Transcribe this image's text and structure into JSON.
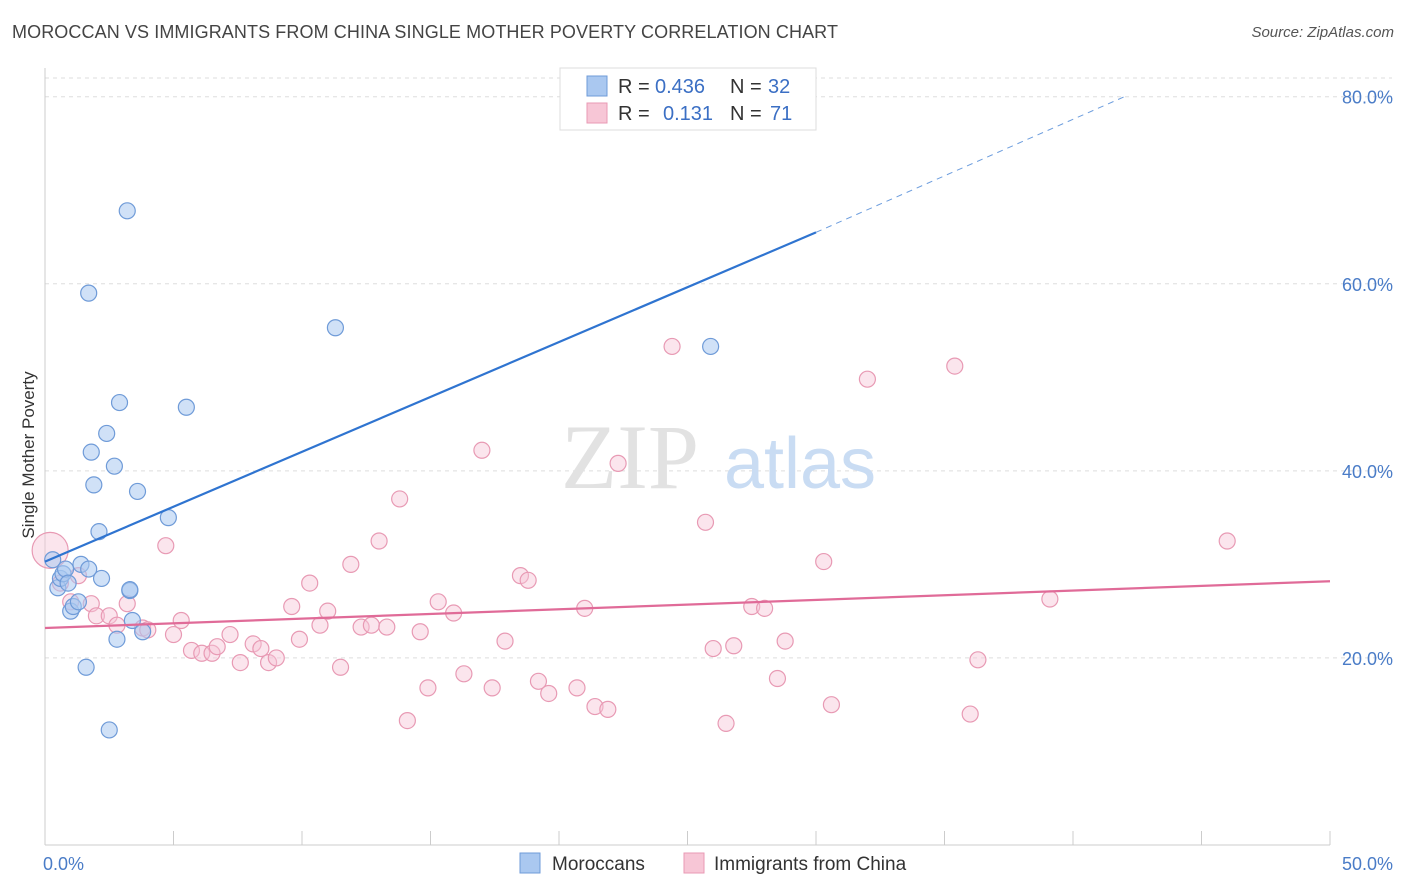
{
  "title": "MOROCCAN VS IMMIGRANTS FROM CHINA SINGLE MOTHER POVERTY CORRELATION CHART",
  "source": "Source: ZipAtlas.com",
  "watermark": {
    "zip": "ZIP",
    "atlas": "atlas"
  },
  "colors": {
    "blue_fill": "#aac8f0",
    "blue_stroke": "#6f9bd8",
    "blue_line": "#2f74d0",
    "pink_fill": "#f7c6d6",
    "pink_stroke": "#e89ab4",
    "pink_line": "#e06b98",
    "grid": "#dddddd",
    "axis_text": "#4a7cc7"
  },
  "legend": {
    "r_label": "R =",
    "n_label": "N =",
    "rows": [
      {
        "series": "Moroccans",
        "r": "0.436",
        "n": "32"
      },
      {
        "series": "Immigrants from China",
        "r": "0.131",
        "n": "71"
      }
    ]
  },
  "chart_data": {
    "type": "scatter",
    "title": "MOROCCAN VS IMMIGRANTS FROM CHINA SINGLE MOTHER POVERTY CORRELATION CHART",
    "xlabel": "",
    "ylabel": "Single Mother Poverty",
    "xlim": [
      0,
      50
    ],
    "ylim": [
      0,
      82
    ],
    "x_tick_labels": [
      "0.0%",
      "50.0%"
    ],
    "y_ticks": [
      20,
      40,
      60,
      80
    ],
    "y_tick_labels": [
      "20.0%",
      "40.0%",
      "60.0%",
      "80.0%"
    ],
    "grid": "horizontal dashed",
    "legend_position": "top-center",
    "series": [
      {
        "name": "Moroccans",
        "color": "#aac8f0",
        "points": [
          [
            0.3,
            30.5
          ],
          [
            0.5,
            27.5
          ],
          [
            0.6,
            28.5
          ],
          [
            0.7,
            29
          ],
          [
            0.8,
            29.5
          ],
          [
            0.9,
            28
          ],
          [
            1.0,
            25
          ],
          [
            1.1,
            25.5
          ],
          [
            1.3,
            26
          ],
          [
            1.4,
            30
          ],
          [
            1.6,
            19
          ],
          [
            1.7,
            29.5
          ],
          [
            1.8,
            42
          ],
          [
            1.9,
            38.5
          ],
          [
            2.1,
            33.5
          ],
          [
            2.2,
            28.5
          ],
          [
            2.4,
            44
          ],
          [
            2.7,
            40.5
          ],
          [
            2.8,
            22
          ],
          [
            2.9,
            47.3
          ],
          [
            3.3,
            27.2
          ],
          [
            3.4,
            24
          ],
          [
            3.6,
            37.8
          ],
          [
            3.8,
            22.8
          ],
          [
            4.8,
            35
          ],
          [
            5.5,
            46.8
          ],
          [
            1.7,
            59
          ],
          [
            3.2,
            67.8
          ],
          [
            11.3,
            55.3
          ],
          [
            2.5,
            12.3
          ],
          [
            25.9,
            53.3
          ],
          [
            3.3,
            27.3
          ]
        ],
        "sizes": {
          "default": 8
        }
      },
      {
        "name": "Immigrants from China",
        "color": "#f7c6d6",
        "points": [
          [
            0.2,
            31.5
          ],
          [
            0.6,
            28
          ],
          [
            1.0,
            26
          ],
          [
            1.3,
            28.8
          ],
          [
            1.8,
            25.8
          ],
          [
            2.0,
            24.5
          ],
          [
            2.5,
            24.5
          ],
          [
            2.8,
            23.5
          ],
          [
            3.2,
            25.8
          ],
          [
            3.8,
            23.2
          ],
          [
            4.0,
            23
          ],
          [
            4.7,
            32
          ],
          [
            5.0,
            22.5
          ],
          [
            5.3,
            24
          ],
          [
            5.7,
            20.8
          ],
          [
            6.1,
            20.5
          ],
          [
            6.5,
            20.5
          ],
          [
            6.7,
            21.2
          ],
          [
            7.2,
            22.5
          ],
          [
            7.6,
            19.5
          ],
          [
            8.1,
            21.5
          ],
          [
            8.4,
            21
          ],
          [
            8.7,
            19.5
          ],
          [
            9.0,
            20
          ],
          [
            9.6,
            25.5
          ],
          [
            9.9,
            22
          ],
          [
            10.3,
            28
          ],
          [
            10.7,
            23.5
          ],
          [
            11.0,
            25
          ],
          [
            11.5,
            19
          ],
          [
            11.9,
            30
          ],
          [
            12.3,
            23.3
          ],
          [
            12.7,
            23.5
          ],
          [
            13.0,
            32.5
          ],
          [
            13.3,
            23.3
          ],
          [
            13.8,
            37
          ],
          [
            14.1,
            13.3
          ],
          [
            14.6,
            22.8
          ],
          [
            14.9,
            16.8
          ],
          [
            15.3,
            26
          ],
          [
            15.9,
            24.8
          ],
          [
            16.3,
            18.3
          ],
          [
            17.0,
            42.2
          ],
          [
            17.4,
            16.8
          ],
          [
            17.9,
            21.8
          ],
          [
            18.5,
            28.8
          ],
          [
            18.8,
            28.3
          ],
          [
            19.2,
            17.5
          ],
          [
            19.6,
            16.2
          ],
          [
            20.7,
            16.8
          ],
          [
            21.0,
            25.3
          ],
          [
            21.4,
            14.8
          ],
          [
            21.9,
            14.5
          ],
          [
            22.3,
            40.8
          ],
          [
            24.4,
            53.3
          ],
          [
            25.7,
            34.5
          ],
          [
            26.0,
            21
          ],
          [
            26.5,
            13
          ],
          [
            26.8,
            21.3
          ],
          [
            27.5,
            25.5
          ],
          [
            28.0,
            25.3
          ],
          [
            28.5,
            17.8
          ],
          [
            28.8,
            21.8
          ],
          [
            30.3,
            30.3
          ],
          [
            30.6,
            15
          ],
          [
            32.0,
            49.8
          ],
          [
            35.4,
            51.2
          ],
          [
            36.0,
            14
          ],
          [
            36.3,
            19.8
          ],
          [
            39.1,
            26.3
          ],
          [
            46.0,
            32.5
          ]
        ],
        "sizes": {
          "default": 8,
          "large_first": 18
        }
      }
    ],
    "trend_lines": [
      {
        "series": "Moroccans",
        "x0": 0,
        "y0": 30.3,
        "x1": 30,
        "y1": 65.5,
        "dashed_to_x": 42,
        "dashed_to_y": 80
      },
      {
        "series": "Immigrants from China",
        "x0": 0,
        "y0": 23.2,
        "x1": 50,
        "y1": 28.2
      }
    ]
  }
}
